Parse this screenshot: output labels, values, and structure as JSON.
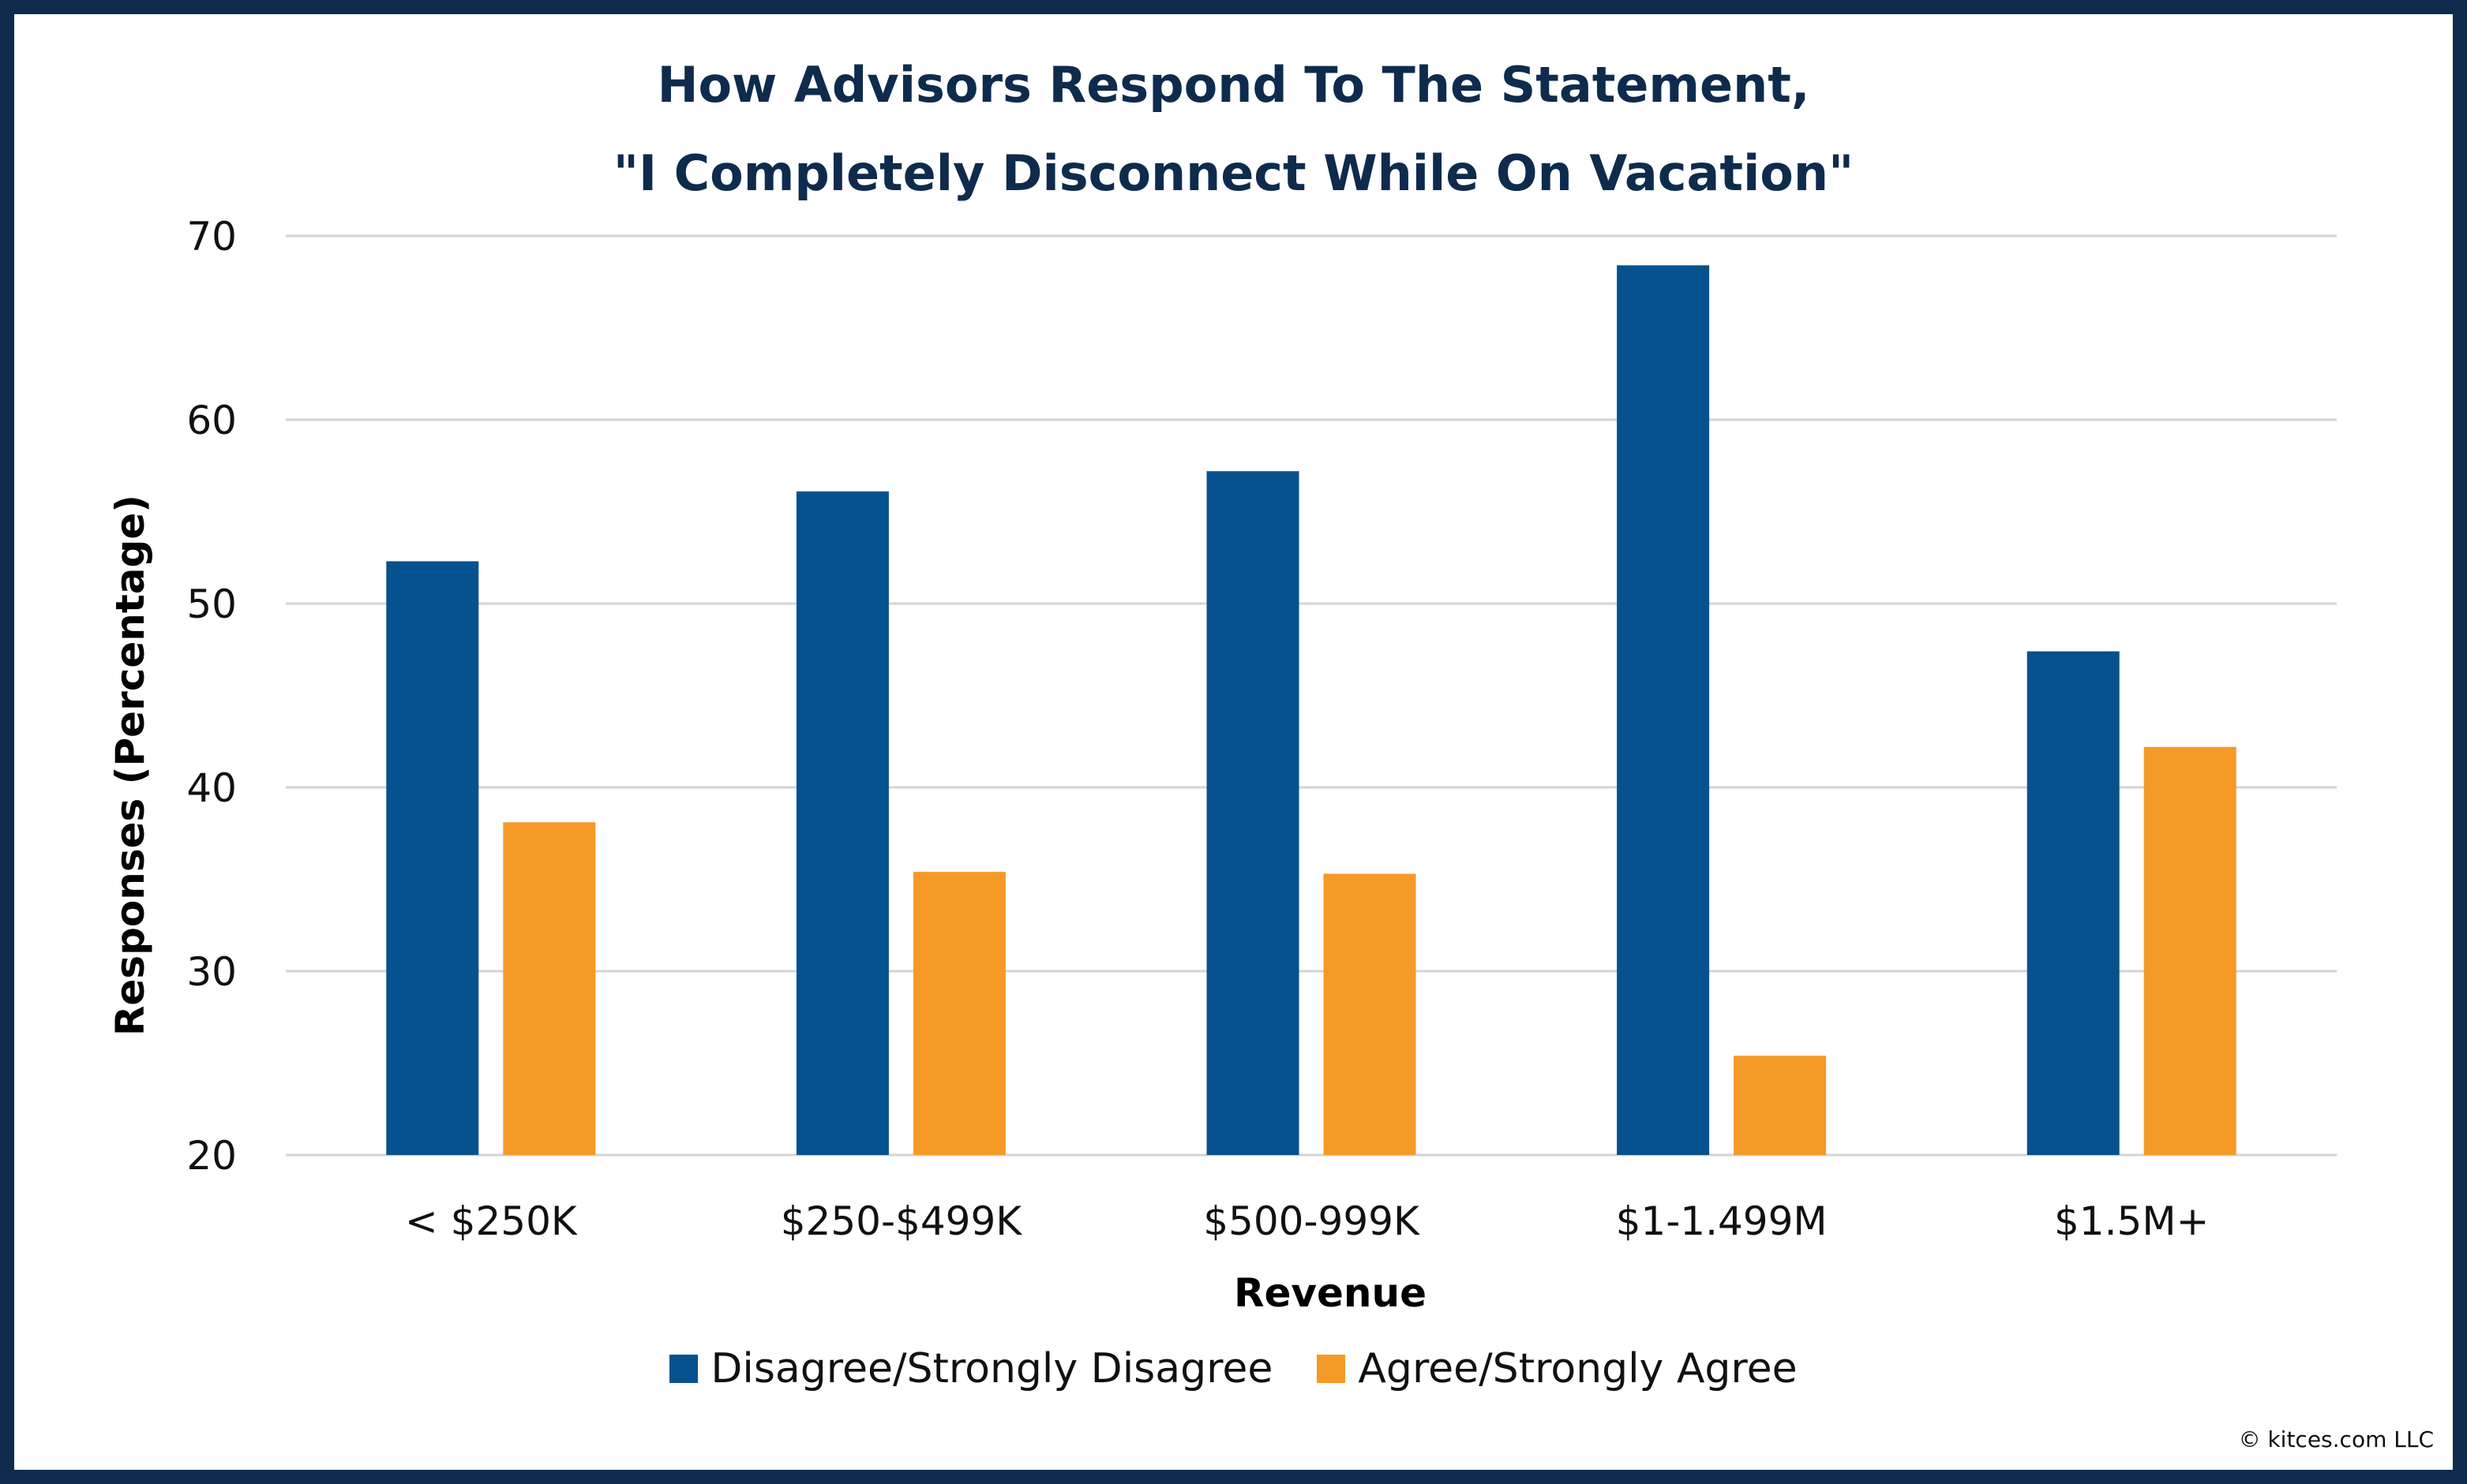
{
  "chart_data": {
    "type": "bar",
    "title_lines": [
      "How Advisors Respond To The Statement,",
      "\"I Completely Disconnect While On Vacation\""
    ],
    "xlabel": "Revenue",
    "ylabel": "Responses (Percentage)",
    "categories": [
      "< $250K",
      "$250-$499K",
      "$500-999K",
      "$1-1.499M",
      "$1.5M+"
    ],
    "series": [
      {
        "name": "Disagree/Strongly Disagree",
        "color": "#06528f",
        "values": [
          52.3,
          56.1,
          57.2,
          68.4,
          47.4
        ]
      },
      {
        "name": "Agree/Strongly Agree",
        "color": "#f59a27",
        "values": [
          38.1,
          35.4,
          35.3,
          25.4,
          42.2
        ]
      }
    ],
    "ylim": [
      20,
      70
    ],
    "yticks": [
      20,
      30,
      40,
      50,
      60,
      70
    ],
    "grid": true,
    "legend_position": "bottom"
  },
  "footer": {
    "copyright": "© kitces.com LLC"
  }
}
